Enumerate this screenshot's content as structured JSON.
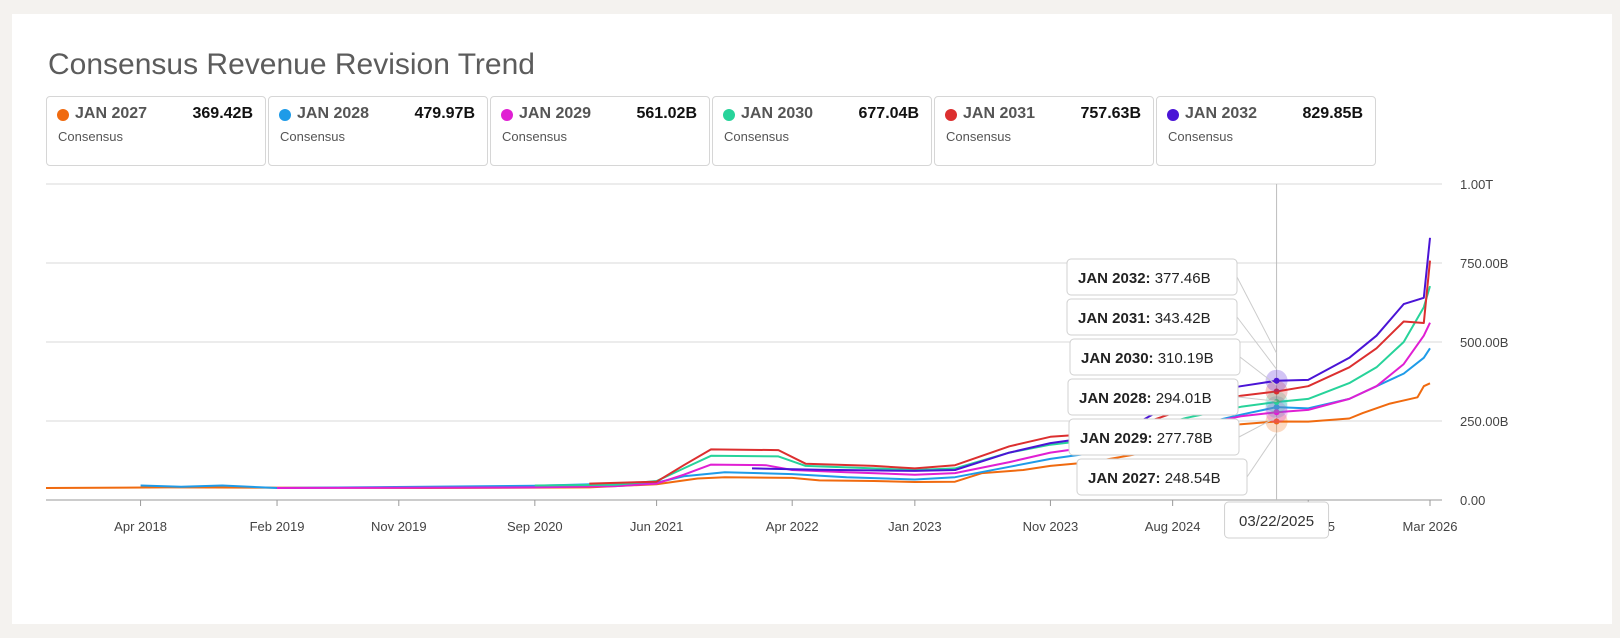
{
  "title": "Consensus Revenue Revision Trend",
  "legend": [
    {
      "name": "JAN 2027",
      "value": "369.42B",
      "sub": "Consensus",
      "color": "#f06a0f"
    },
    {
      "name": "JAN 2028",
      "value": "479.97B",
      "sub": "Consensus",
      "color": "#1e9be8"
    },
    {
      "name": "JAN 2029",
      "value": "561.02B",
      "sub": "Consensus",
      "color": "#e01fd3"
    },
    {
      "name": "JAN 2030",
      "value": "677.04B",
      "sub": "Consensus",
      "color": "#27d39a"
    },
    {
      "name": "JAN 2031",
      "value": "757.63B",
      "sub": "Consensus",
      "color": "#dc2f2f"
    },
    {
      "name": "JAN 2032",
      "value": "829.85B",
      "sub": "Consensus",
      "color": "#4a14d6"
    }
  ],
  "tooltip": {
    "date": "03/22/2025",
    "items": [
      {
        "label": "JAN 2032:",
        "value": "377.46B"
      },
      {
        "label": "JAN 2031:",
        "value": "343.42B"
      },
      {
        "label": "JAN 2030:",
        "value": "310.19B"
      },
      {
        "label": "JAN 2028:",
        "value": "294.01B"
      },
      {
        "label": "JAN 2029:",
        "value": "277.78B"
      },
      {
        "label": "JAN 2027:",
        "value": "248.54B"
      }
    ]
  },
  "chart_data": {
    "type": "line",
    "title": "Consensus Revenue Revision Trend",
    "xlabel": "",
    "ylabel": "",
    "x_range": [
      "2017-09-01",
      "2026-03-01"
    ],
    "ylim": [
      0,
      1000
    ],
    "y_unit": "B",
    "y_ticks": [
      {
        "value": 0,
        "label": "0.00"
      },
      {
        "value": 250,
        "label": "250.00B"
      },
      {
        "value": 500,
        "label": "500.00B"
      },
      {
        "value": 750,
        "label": "750.00B"
      },
      {
        "value": 1000,
        "label": "1.00T"
      }
    ],
    "x_ticks": [
      {
        "date": "2018-04-01",
        "label": "Apr 2018"
      },
      {
        "date": "2019-02-01",
        "label": "Feb 2019"
      },
      {
        "date": "2019-11-01",
        "label": "Nov 2019"
      },
      {
        "date": "2020-09-01",
        "label": "Sep 2020"
      },
      {
        "date": "2021-06-01",
        "label": "Jun 2021"
      },
      {
        "date": "2022-04-01",
        "label": "Apr 2022"
      },
      {
        "date": "2023-01-01",
        "label": "Jan 2023"
      },
      {
        "date": "2023-11-01",
        "label": "Nov 2023"
      },
      {
        "date": "2024-08-01",
        "label": "Aug 2024"
      },
      {
        "date": "2025-06-01",
        "label": "Jun 2025"
      },
      {
        "date": "2026-03-01",
        "label": "Mar 2026"
      }
    ],
    "grid": true,
    "legend_position": "top",
    "crosshair_date": "2025-03-22",
    "series": [
      {
        "name": "JAN 2027",
        "color": "#f06a0f",
        "points": [
          [
            "2017-09-01",
            38
          ],
          [
            "2018-06-01",
            40
          ],
          [
            "2020-01-01",
            38
          ],
          [
            "2021-01-01",
            40
          ],
          [
            "2021-06-01",
            50
          ],
          [
            "2021-09-01",
            68
          ],
          [
            "2021-11-01",
            72
          ],
          [
            "2022-04-01",
            70
          ],
          [
            "2022-06-01",
            62
          ],
          [
            "2022-10-01",
            60
          ],
          [
            "2023-01-01",
            57
          ],
          [
            "2023-04-01",
            58
          ],
          [
            "2023-06-01",
            85
          ],
          [
            "2023-09-01",
            95
          ],
          [
            "2023-11-01",
            108
          ],
          [
            "2024-02-01",
            120
          ],
          [
            "2024-06-01",
            150
          ],
          [
            "2024-09-01",
            210
          ],
          [
            "2025-01-01",
            240
          ],
          [
            "2025-03-22",
            248.54
          ],
          [
            "2025-06-01",
            248
          ],
          [
            "2025-09-01",
            258
          ],
          [
            "2025-10-01",
            275
          ],
          [
            "2025-12-01",
            305
          ],
          [
            "2026-02-01",
            325
          ],
          [
            "2026-02-15",
            360
          ],
          [
            "2026-03-01",
            369.42
          ]
        ]
      },
      {
        "name": "JAN 2028",
        "color": "#1e9be8",
        "points": [
          [
            "2018-04-01",
            46
          ],
          [
            "2018-07-01",
            42
          ],
          [
            "2018-10-01",
            46
          ],
          [
            "2019-02-01",
            38
          ],
          [
            "2020-09-01",
            45
          ],
          [
            "2021-06-01",
            55
          ],
          [
            "2021-08-01",
            75
          ],
          [
            "2021-11-01",
            88
          ],
          [
            "2022-04-01",
            82
          ],
          [
            "2022-08-01",
            72
          ],
          [
            "2023-01-01",
            65
          ],
          [
            "2023-04-01",
            72
          ],
          [
            "2023-08-01",
            105
          ],
          [
            "2023-11-01",
            130
          ],
          [
            "2024-04-01",
            160
          ],
          [
            "2024-09-01",
            230
          ],
          [
            "2025-01-01",
            270
          ],
          [
            "2025-03-22",
            294.01
          ],
          [
            "2025-06-01",
            290
          ],
          [
            "2025-09-01",
            320
          ],
          [
            "2025-11-01",
            360
          ],
          [
            "2026-01-01",
            400
          ],
          [
            "2026-02-15",
            450
          ],
          [
            "2026-03-01",
            479.97
          ]
        ]
      },
      {
        "name": "JAN 2029",
        "color": "#e01fd3",
        "points": [
          [
            "2019-02-01",
            38
          ],
          [
            "2020-09-01",
            40
          ],
          [
            "2021-03-01",
            44
          ],
          [
            "2021-06-01",
            52
          ],
          [
            "2021-08-01",
            80
          ],
          [
            "2021-10-01",
            112
          ],
          [
            "2022-02-01",
            110
          ],
          [
            "2022-04-01",
            95
          ],
          [
            "2022-08-01",
            88
          ],
          [
            "2023-01-01",
            80
          ],
          [
            "2023-04-01",
            85
          ],
          [
            "2023-08-01",
            120
          ],
          [
            "2023-11-01",
            150
          ],
          [
            "2024-04-01",
            180
          ],
          [
            "2024-09-01",
            230
          ],
          [
            "2025-01-01",
            265
          ],
          [
            "2025-03-22",
            277.78
          ],
          [
            "2025-06-01",
            285
          ],
          [
            "2025-09-01",
            320
          ],
          [
            "2025-11-01",
            360
          ],
          [
            "2026-01-01",
            430
          ],
          [
            "2026-02-15",
            520
          ],
          [
            "2026-03-01",
            561.02
          ]
        ]
      },
      {
        "name": "JAN 2030",
        "color": "#27d39a",
        "points": [
          [
            "2020-09-01",
            46
          ],
          [
            "2021-03-01",
            48
          ],
          [
            "2021-06-01",
            60
          ],
          [
            "2021-08-01",
            100
          ],
          [
            "2021-10-01",
            140
          ],
          [
            "2022-03-01",
            138
          ],
          [
            "2022-05-01",
            108
          ],
          [
            "2022-10-01",
            100
          ],
          [
            "2023-01-01",
            95
          ],
          [
            "2023-04-01",
            100
          ],
          [
            "2023-08-01",
            150
          ],
          [
            "2023-11-01",
            175
          ],
          [
            "2024-04-01",
            200
          ],
          [
            "2024-09-01",
            260
          ],
          [
            "2025-01-01",
            295
          ],
          [
            "2025-03-22",
            310.19
          ],
          [
            "2025-06-01",
            320
          ],
          [
            "2025-09-01",
            370
          ],
          [
            "2025-11-01",
            420
          ],
          [
            "2026-01-01",
            500
          ],
          [
            "2026-02-15",
            610
          ],
          [
            "2026-03-01",
            677.04
          ]
        ]
      },
      {
        "name": "JAN 2031",
        "color": "#dc2f2f",
        "points": [
          [
            "2021-01-01",
            52
          ],
          [
            "2021-06-01",
            58
          ],
          [
            "2021-08-01",
            110
          ],
          [
            "2021-10-01",
            160
          ],
          [
            "2022-03-01",
            158
          ],
          [
            "2022-05-01",
            115
          ],
          [
            "2022-10-01",
            108
          ],
          [
            "2023-01-01",
            100
          ],
          [
            "2023-04-01",
            110
          ],
          [
            "2023-08-01",
            170
          ],
          [
            "2023-11-01",
            200
          ],
          [
            "2024-04-01",
            215
          ],
          [
            "2024-09-01",
            290
          ],
          [
            "2025-01-01",
            330
          ],
          [
            "2025-03-22",
            343.42
          ],
          [
            "2025-06-01",
            360
          ],
          [
            "2025-09-01",
            420
          ],
          [
            "2025-11-01",
            480
          ],
          [
            "2026-01-01",
            565
          ],
          [
            "2026-02-15",
            560
          ],
          [
            "2026-03-01",
            757.63
          ]
        ]
      },
      {
        "name": "JAN 2032",
        "color": "#4a14d6",
        "points": [
          [
            "2022-01-01",
            100
          ],
          [
            "2022-06-01",
            96
          ],
          [
            "2023-01-01",
            92
          ],
          [
            "2023-04-01",
            95
          ],
          [
            "2023-08-01",
            150
          ],
          [
            "2023-11-01",
            180
          ],
          [
            "2024-04-01",
            210
          ],
          [
            "2024-09-01",
            330
          ],
          [
            "2025-01-01",
            360
          ],
          [
            "2025-03-22",
            377.46
          ],
          [
            "2025-06-01",
            380
          ],
          [
            "2025-09-01",
            450
          ],
          [
            "2025-11-01",
            520
          ],
          [
            "2026-01-01",
            620
          ],
          [
            "2026-02-15",
            640
          ],
          [
            "2026-03-01",
            829.85
          ]
        ]
      }
    ]
  }
}
